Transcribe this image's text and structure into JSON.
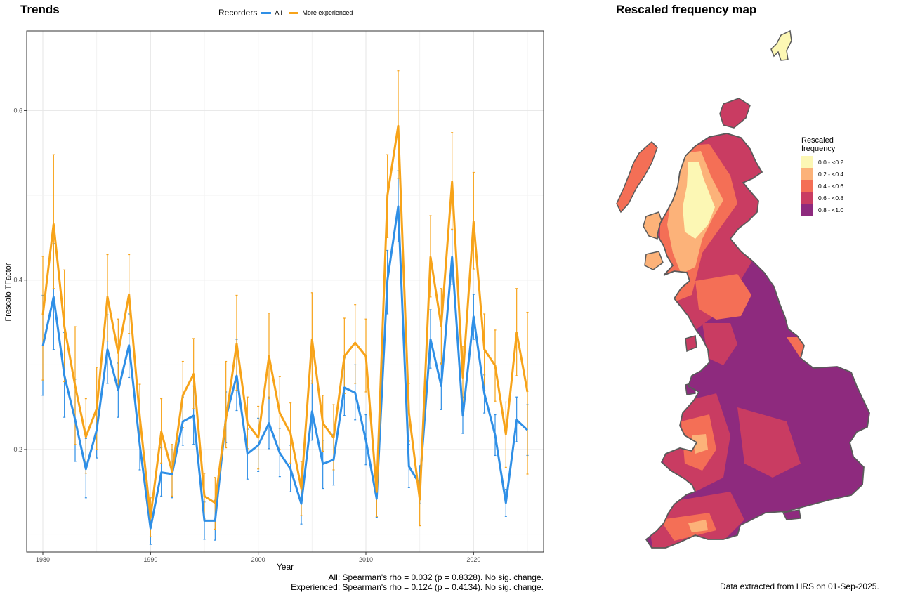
{
  "trends": {
    "title": "Trends",
    "legend_title": "Recorders",
    "stats_all": "All: Spearman's rho = 0.032 (p = 0.8328). No sig. change.",
    "stats_exp": "Experienced: Spearman's rho = 0.124 (p = 0.4134). No sig. change."
  },
  "map": {
    "title": "Rescaled frequency map",
    "legend_title": "Rescaled frequency",
    "legend_items": [
      {
        "label": "0.0 - <0.2",
        "color": "#fcf7b4"
      },
      {
        "label": "0.2 - <0.4",
        "color": "#fcb279"
      },
      {
        "label": "0.4 - <0.6",
        "color": "#f46f56"
      },
      {
        "label": "0.6 - <0.8",
        "color": "#c93c62"
      },
      {
        "label": "0.8 - <1.0",
        "color": "#8e2a7e"
      }
    ],
    "outline_color": "#5a5a5a"
  },
  "footnote": "Data extracted from HRS on 01-Sep-2025.",
  "chart_data": {
    "type": "line",
    "title": "Trends",
    "xlabel": "Year",
    "ylabel": "Frescalo TFactor",
    "xlim": [
      1978.5,
      2026.5
    ],
    "ylim": [
      0.079,
      0.694
    ],
    "x_ticks": [
      1980,
      1990,
      2000,
      2010,
      2020
    ],
    "y_ticks": [
      0.2,
      0.4,
      0.6
    ],
    "grid": true,
    "legend": "top",
    "x": [
      1980,
      1981,
      1982,
      1983,
      1984,
      1985,
      1986,
      1987,
      1988,
      1989,
      1990,
      1991,
      1992,
      1993,
      1994,
      1995,
      1996,
      1997,
      1998,
      1999,
      2000,
      2001,
      2002,
      2003,
      2004,
      2005,
      2006,
      2007,
      2008,
      2009,
      2010,
      2011,
      2012,
      2013,
      2014,
      2015,
      2016,
      2017,
      2018,
      2019,
      2020,
      2021,
      2022,
      2023,
      2024,
      2025
    ],
    "series": [
      {
        "name": "All",
        "color": "#2f8fe6",
        "values": [
          0.322,
          0.38,
          0.287,
          0.235,
          0.177,
          0.223,
          0.318,
          0.27,
          0.323,
          0.206,
          0.107,
          0.173,
          0.171,
          0.233,
          0.24,
          0.116,
          0.116,
          0.238,
          0.287,
          0.195,
          0.205,
          0.231,
          0.196,
          0.177,
          0.136,
          0.245,
          0.183,
          0.188,
          0.273,
          0.267,
          0.211,
          0.142,
          0.4,
          0.487,
          0.18,
          0.159,
          0.33,
          0.275,
          0.427,
          0.24,
          0.357,
          0.266,
          0.217,
          0.137,
          0.235,
          0.223
        ],
        "lower": [
          0.264,
          0.318,
          0.238,
          0.186,
          0.143,
          0.19,
          0.278,
          0.238,
          0.285,
          0.176,
          0.088,
          0.145,
          0.143,
          0.205,
          0.206,
          0.094,
          0.093,
          0.208,
          0.246,
          0.165,
          0.174,
          0.201,
          0.168,
          0.15,
          0.112,
          0.211,
          0.154,
          0.158,
          0.24,
          0.235,
          0.182,
          0.12,
          0.36,
          0.445,
          0.155,
          0.136,
          0.296,
          0.247,
          0.395,
          0.219,
          0.33,
          0.243,
          0.193,
          0.121,
          0.209,
          0.193
        ],
        "upper": [
          0.382,
          0.443,
          0.338,
          0.283,
          0.213,
          0.258,
          0.359,
          0.302,
          0.36,
          0.236,
          0.128,
          0.202,
          0.2,
          0.262,
          0.275,
          0.138,
          0.14,
          0.268,
          0.33,
          0.224,
          0.237,
          0.262,
          0.225,
          0.205,
          0.161,
          0.281,
          0.211,
          0.218,
          0.308,
          0.3,
          0.241,
          0.163,
          0.435,
          0.529,
          0.206,
          0.181,
          0.365,
          0.302,
          0.459,
          0.262,
          0.383,
          0.288,
          0.241,
          0.153,
          0.262,
          0.253
        ]
      },
      {
        "name": "More experienced",
        "color": "#f7a319",
        "values": [
          0.359,
          0.466,
          0.345,
          0.275,
          0.215,
          0.248,
          0.38,
          0.314,
          0.383,
          0.239,
          0.12,
          0.221,
          0.174,
          0.264,
          0.289,
          0.145,
          0.137,
          0.236,
          0.325,
          0.231,
          0.214,
          0.31,
          0.243,
          0.219,
          0.154,
          0.33,
          0.231,
          0.214,
          0.31,
          0.326,
          0.31,
          0.15,
          0.5,
          0.582,
          0.243,
          0.141,
          0.427,
          0.346,
          0.516,
          0.285,
          0.469,
          0.318,
          0.299,
          0.218,
          0.338,
          0.268
        ],
        "lower": [
          0.282,
          0.39,
          0.28,
          0.206,
          0.172,
          0.2,
          0.328,
          0.275,
          0.337,
          0.205,
          0.097,
          0.184,
          0.145,
          0.226,
          0.248,
          0.118,
          0.106,
          0.202,
          0.27,
          0.201,
          0.177,
          0.26,
          0.2,
          0.184,
          0.122,
          0.278,
          0.198,
          0.176,
          0.266,
          0.278,
          0.268,
          0.121,
          0.45,
          0.52,
          0.21,
          0.11,
          0.38,
          0.301,
          0.46,
          0.25,
          0.413,
          0.27,
          0.257,
          0.179,
          0.287,
          0.171
        ],
        "upper": [
          0.428,
          0.548,
          0.412,
          0.345,
          0.26,
          0.297,
          0.43,
          0.354,
          0.43,
          0.277,
          0.143,
          0.26,
          0.206,
          0.304,
          0.331,
          0.172,
          0.167,
          0.304,
          0.382,
          0.262,
          0.251,
          0.361,
          0.286,
          0.255,
          0.186,
          0.385,
          0.264,
          0.253,
          0.355,
          0.371,
          0.354,
          0.179,
          0.548,
          0.647,
          0.278,
          0.173,
          0.476,
          0.39,
          0.574,
          0.322,
          0.527,
          0.36,
          0.341,
          0.256,
          0.39,
          0.362
        ]
      }
    ]
  }
}
